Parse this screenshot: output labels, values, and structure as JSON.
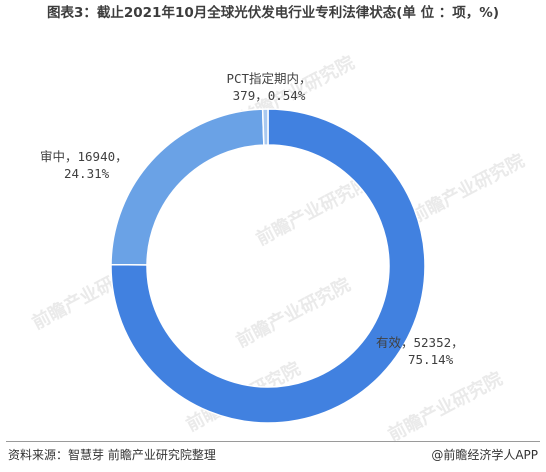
{
  "title": "图表3：截止2021年10月全球光伏发电行业专利法律状态(单 位 ：项，%)",
  "chart_data": {
    "type": "pie",
    "donut": true,
    "title": "图表3：截止2021年10月全球光伏发电行业专利法律状态(单 位 ：项，%)",
    "series": [
      {
        "name": "有效",
        "value": 52352,
        "percent": 75.14,
        "color": "#4181E0",
        "label_line1": "有效，52352，",
        "label_line2": "75.14%"
      },
      {
        "name": "审中",
        "value": 16940,
        "percent": 24.31,
        "color": "#6AA2E6",
        "label_line1": "审中，16940，",
        "label_line2": "24.31%"
      },
      {
        "name": "PCT指定期内",
        "value": 379,
        "percent": 0.54,
        "color": "#A9C9F0",
        "label_line1": "PCT指定期内，",
        "label_line2": "379，0.54%"
      }
    ]
  },
  "watermark_text": "前瞻产业研究院",
  "footer": {
    "source": "资料来源：智慧芽 前瞻产业研究院整理",
    "brand": "@前瞻经济学人APP"
  }
}
